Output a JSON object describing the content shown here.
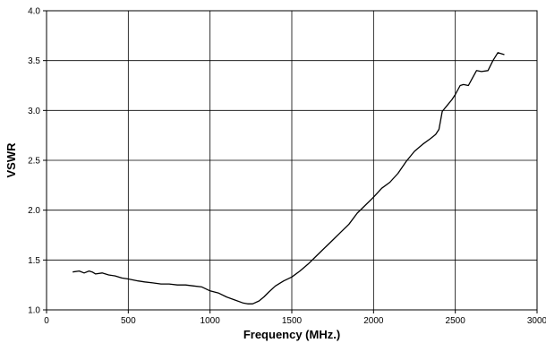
{
  "chart_data": {
    "type": "line",
    "title": "",
    "xlabel": "Frequency (MHz.)",
    "ylabel": "VSWR",
    "xlim": [
      0,
      3000
    ],
    "ylim": [
      1.0,
      4.0
    ],
    "xticks": [
      0,
      500,
      1000,
      1500,
      2000,
      2500,
      3000
    ],
    "yticks": [
      1.0,
      1.5,
      2.0,
      2.5,
      3.0,
      3.5,
      4.0
    ],
    "xtick_labels": [
      "0",
      "500",
      "1000",
      "1500",
      "2000",
      "2500",
      "3000"
    ],
    "ytick_labels": [
      "1.0",
      "1.5",
      "2.0",
      "2.5",
      "3.0",
      "3.5",
      "4.0"
    ],
    "grid": true,
    "legend": "none",
    "line_color": "#000000",
    "grid_color": "#000000",
    "series": [
      {
        "x": [
          160,
          200,
          230,
          260,
          280,
          300,
          340,
          380,
          420,
          460,
          500,
          560,
          600,
          650,
          700,
          750,
          800,
          850,
          900,
          950,
          1000,
          1050,
          1100,
          1150,
          1200,
          1230,
          1260,
          1300,
          1330,
          1360,
          1400,
          1450,
          1500,
          1550,
          1600,
          1650,
          1700,
          1750,
          1800,
          1850,
          1900,
          1950,
          2000,
          2050,
          2100,
          2150,
          2200,
          2250,
          2300,
          2350,
          2380,
          2400,
          2420,
          2450,
          2480,
          2500,
          2530,
          2550,
          2580,
          2600,
          2630,
          2660,
          2700,
          2730,
          2760,
          2780,
          2800
        ],
        "y": [
          1.38,
          1.39,
          1.37,
          1.39,
          1.38,
          1.36,
          1.37,
          1.35,
          1.34,
          1.32,
          1.31,
          1.29,
          1.28,
          1.27,
          1.26,
          1.26,
          1.25,
          1.25,
          1.24,
          1.23,
          1.19,
          1.17,
          1.13,
          1.1,
          1.07,
          1.06,
          1.06,
          1.09,
          1.13,
          1.18,
          1.24,
          1.29,
          1.33,
          1.39,
          1.46,
          1.54,
          1.62,
          1.7,
          1.78,
          1.86,
          1.97,
          2.05,
          2.13,
          2.22,
          2.28,
          2.37,
          2.49,
          2.59,
          2.66,
          2.72,
          2.76,
          2.81,
          2.99,
          3.05,
          3.11,
          3.16,
          3.25,
          3.26,
          3.25,
          3.31,
          3.4,
          3.39,
          3.4,
          3.5,
          3.58,
          3.57,
          3.56
        ]
      }
    ]
  }
}
